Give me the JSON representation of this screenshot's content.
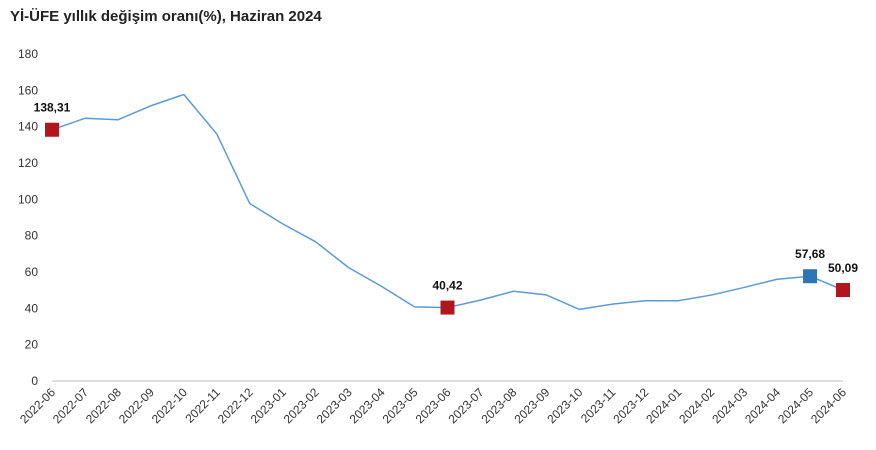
{
  "chart_data": {
    "type": "line",
    "title": "Yİ-ÜFE yıllık değişim oranı(%), Haziran 2024",
    "xlabel": "",
    "ylabel": "",
    "ylim": [
      0,
      180
    ],
    "yticks": [
      0,
      20,
      40,
      60,
      80,
      100,
      120,
      140,
      160,
      180
    ],
    "grid": false,
    "legend": "none",
    "categories": [
      "2022-06",
      "2022-07",
      "2022-08",
      "2022-09",
      "2022-10",
      "2022-11",
      "2022-12",
      "2023-01",
      "2023-02",
      "2023-03",
      "2023-04",
      "2023-05",
      "2023-06",
      "2023-07",
      "2023-08",
      "2023-09",
      "2023-10",
      "2023-11",
      "2023-12",
      "2024-01",
      "2024-02",
      "2024-03",
      "2024-04",
      "2024-05",
      "2024-06"
    ],
    "series": [
      {
        "values": [
          138.31,
          144.6,
          143.8,
          151.5,
          157.7,
          136.0,
          97.7,
          86.5,
          76.6,
          62.4,
          52.1,
          40.8,
          40.42,
          44.5,
          49.4,
          47.4,
          39.4,
          42.3,
          44.2,
          44.2,
          47.3,
          51.5,
          56.0,
          57.68,
          50.09
        ],
        "color": "#5b9bd5"
      }
    ],
    "highlights": [
      {
        "category": "2022-06",
        "value": 138.31,
        "label": "138,31",
        "color": "#b2151b"
      },
      {
        "category": "2023-06",
        "value": 40.42,
        "label": "40,42",
        "color": "#b2151b"
      },
      {
        "category": "2024-05",
        "value": 57.68,
        "label": "57,68",
        "color": "#2e75b6"
      },
      {
        "category": "2024-06",
        "value": 50.09,
        "label": "50,09",
        "color": "#b2151b"
      }
    ]
  }
}
